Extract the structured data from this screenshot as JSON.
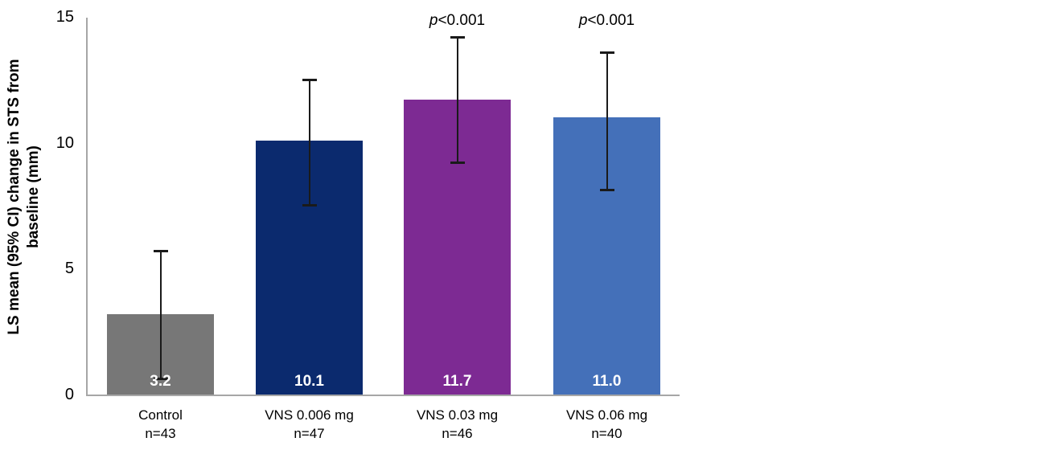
{
  "chart_data": {
    "type": "bar",
    "title": "",
    "xlabel": "",
    "ylabel": "LS mean (95% CI) change in STS from baseline (mm)",
    "ylabel_lines": [
      "LS mean (95% CI) change in STS from",
      "baseline (mm)"
    ],
    "ylim": [
      0,
      15
    ],
    "yticks": [
      "0",
      "5",
      "10",
      "15"
    ],
    "ytick_values": [
      0,
      5,
      10,
      15
    ],
    "grid": false,
    "legend": false,
    "categories": [
      "Control",
      "VNS 0.006 mg",
      "VNS 0.03 mg",
      "VNS 0.06 mg"
    ],
    "category_sublabels": [
      "n=43",
      "n=47",
      "n=46",
      "n=40"
    ],
    "values": [
      3.2,
      10.1,
      11.7,
      11.0
    ],
    "value_labels": [
      "3.2",
      "10.1",
      "11.7",
      "11.0"
    ],
    "ci_low": [
      0.6,
      7.5,
      9.2,
      8.1
    ],
    "ci_high": [
      5.7,
      12.5,
      14.2,
      13.6
    ],
    "bar_colors": [
      "#777777",
      "#0b2a6e",
      "#7d2a93",
      "#4470b9"
    ],
    "annotations": [
      null,
      null,
      {
        "italic": "p",
        "text": "<0.001",
        "full": "p<0.001"
      },
      {
        "italic": "p",
        "text": "<0.001",
        "full": "p<0.001"
      }
    ],
    "colors": {
      "axis": "#a6a6a6",
      "error_bar": "#1a1a1a",
      "value_label_text": "#ffffff",
      "text": "#000000"
    }
  }
}
